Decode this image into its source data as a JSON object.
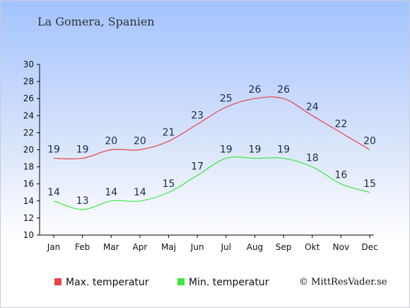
{
  "header": {
    "location": "La Gomera, Spanien"
  },
  "footer": {
    "copyright": "© MittResVader.se"
  },
  "colors": {
    "max": "#e8434a",
    "min": "#3ee83e",
    "axis": "#000000",
    "label": "#1a2a4a"
  },
  "chart_data": {
    "type": "line",
    "categories": [
      "Jan",
      "Feb",
      "Mar",
      "Apr",
      "Maj",
      "Jun",
      "Jul",
      "Aug",
      "Sep",
      "Okt",
      "Nov",
      "Dec"
    ],
    "series": [
      {
        "name": "Max. temperatur",
        "values": [
          19,
          19,
          20,
          20,
          21,
          23,
          25,
          26,
          26,
          24,
          22,
          20
        ]
      },
      {
        "name": "Min. temperatur",
        "values": [
          14,
          13,
          14,
          14,
          15,
          17,
          19,
          19,
          19,
          18,
          16,
          15
        ]
      }
    ],
    "ylim": [
      10,
      30
    ],
    "yticks": [
      10,
      12,
      14,
      16,
      18,
      20,
      22,
      24,
      26,
      28,
      30
    ],
    "grid": false,
    "legend": "bottom"
  }
}
